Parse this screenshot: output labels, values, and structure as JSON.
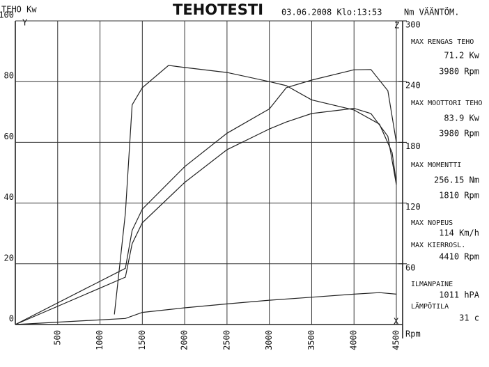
{
  "chart_data": {
    "type": "line",
    "title": "TEHOTESTI",
    "left_header": "TEHO Kw",
    "date_time": "03.06.2008 Klo:13:53",
    "right_header": "Nm VÄÄNTÖM.",
    "y_axis_letter": "Y",
    "y2_axis_letter": "Z",
    "x_axis_letter": "X",
    "x_label": "Rpm",
    "xlim": [
      0,
      4500
    ],
    "xticks": [
      500,
      1000,
      1500,
      2000,
      2500,
      3000,
      3500,
      4000,
      4500
    ],
    "ylim": [
      0,
      100
    ],
    "yticks": [
      0,
      20,
      40,
      60,
      80,
      100
    ],
    "y2lim": [
      0,
      300
    ],
    "y2ticks": [
      60,
      120,
      180,
      240,
      300
    ],
    "grid": true,
    "series": [
      {
        "color": "#222",
        "x": [
          0,
          1300,
          1380,
          1500,
          2000,
          2500,
          3000,
          3200,
          3500,
          4000,
          4200,
          4400,
          4500
        ],
        "values": [
          0,
          18.5,
          31,
          38,
          52,
          63,
          71,
          78,
          80.5,
          83.9,
          84,
          77,
          60
        ]
      },
      {
        "color": "#222",
        "x": [
          0,
          1300,
          1380,
          1500,
          2000,
          2500,
          3000,
          3200,
          3500,
          4000,
          4200,
          4400,
          4500
        ],
        "values": [
          0,
          15.6,
          26.6,
          33.5,
          46.8,
          57.6,
          64.4,
          66.7,
          69.5,
          71.2,
          69.5,
          62,
          46
        ]
      },
      {
        "color": "#222",
        "axis": "y2",
        "x": [
          1170,
          1300,
          1380,
          1500,
          1810,
          2000,
          2500,
          3000,
          3200,
          3500,
          4000,
          4300,
          4450,
          4500
        ],
        "values": [
          10,
          110,
          217,
          234,
          256,
          254,
          249,
          240,
          236,
          222,
          212,
          198,
          170,
          140
        ]
      },
      {
        "color": "#222",
        "x": [
          0,
          1300,
          1500,
          2000,
          2500,
          3000,
          3500,
          4000,
          4300,
          4500
        ],
        "values": [
          0,
          2,
          4,
          5.5,
          6.8,
          8,
          9,
          10,
          10.5,
          10
        ]
      }
    ],
    "info": [
      {
        "label": "MAX RENGAS TEHO",
        "values": [
          "71.2 Kw",
          "3980 Rpm"
        ]
      },
      {
        "label": "MAX MOOTTORI TEHO",
        "values": [
          "83.9 Kw",
          "3980 Rpm"
        ]
      },
      {
        "label": "MAX MOMENTTI",
        "values": [
          "256.15 Nm",
          "1810 Rpm"
        ]
      },
      {
        "label": "MAX NOPEUS",
        "values": [
          "114 Km/h"
        ]
      },
      {
        "label": "MAX KIERROSL.",
        "values": [
          "4410 Rpm"
        ]
      },
      {
        "label": "ILMANPAINE",
        "values": [
          "1011 hPA"
        ]
      },
      {
        "label": "LÄMPÖTILA",
        "values": [
          "31 c"
        ]
      }
    ]
  }
}
